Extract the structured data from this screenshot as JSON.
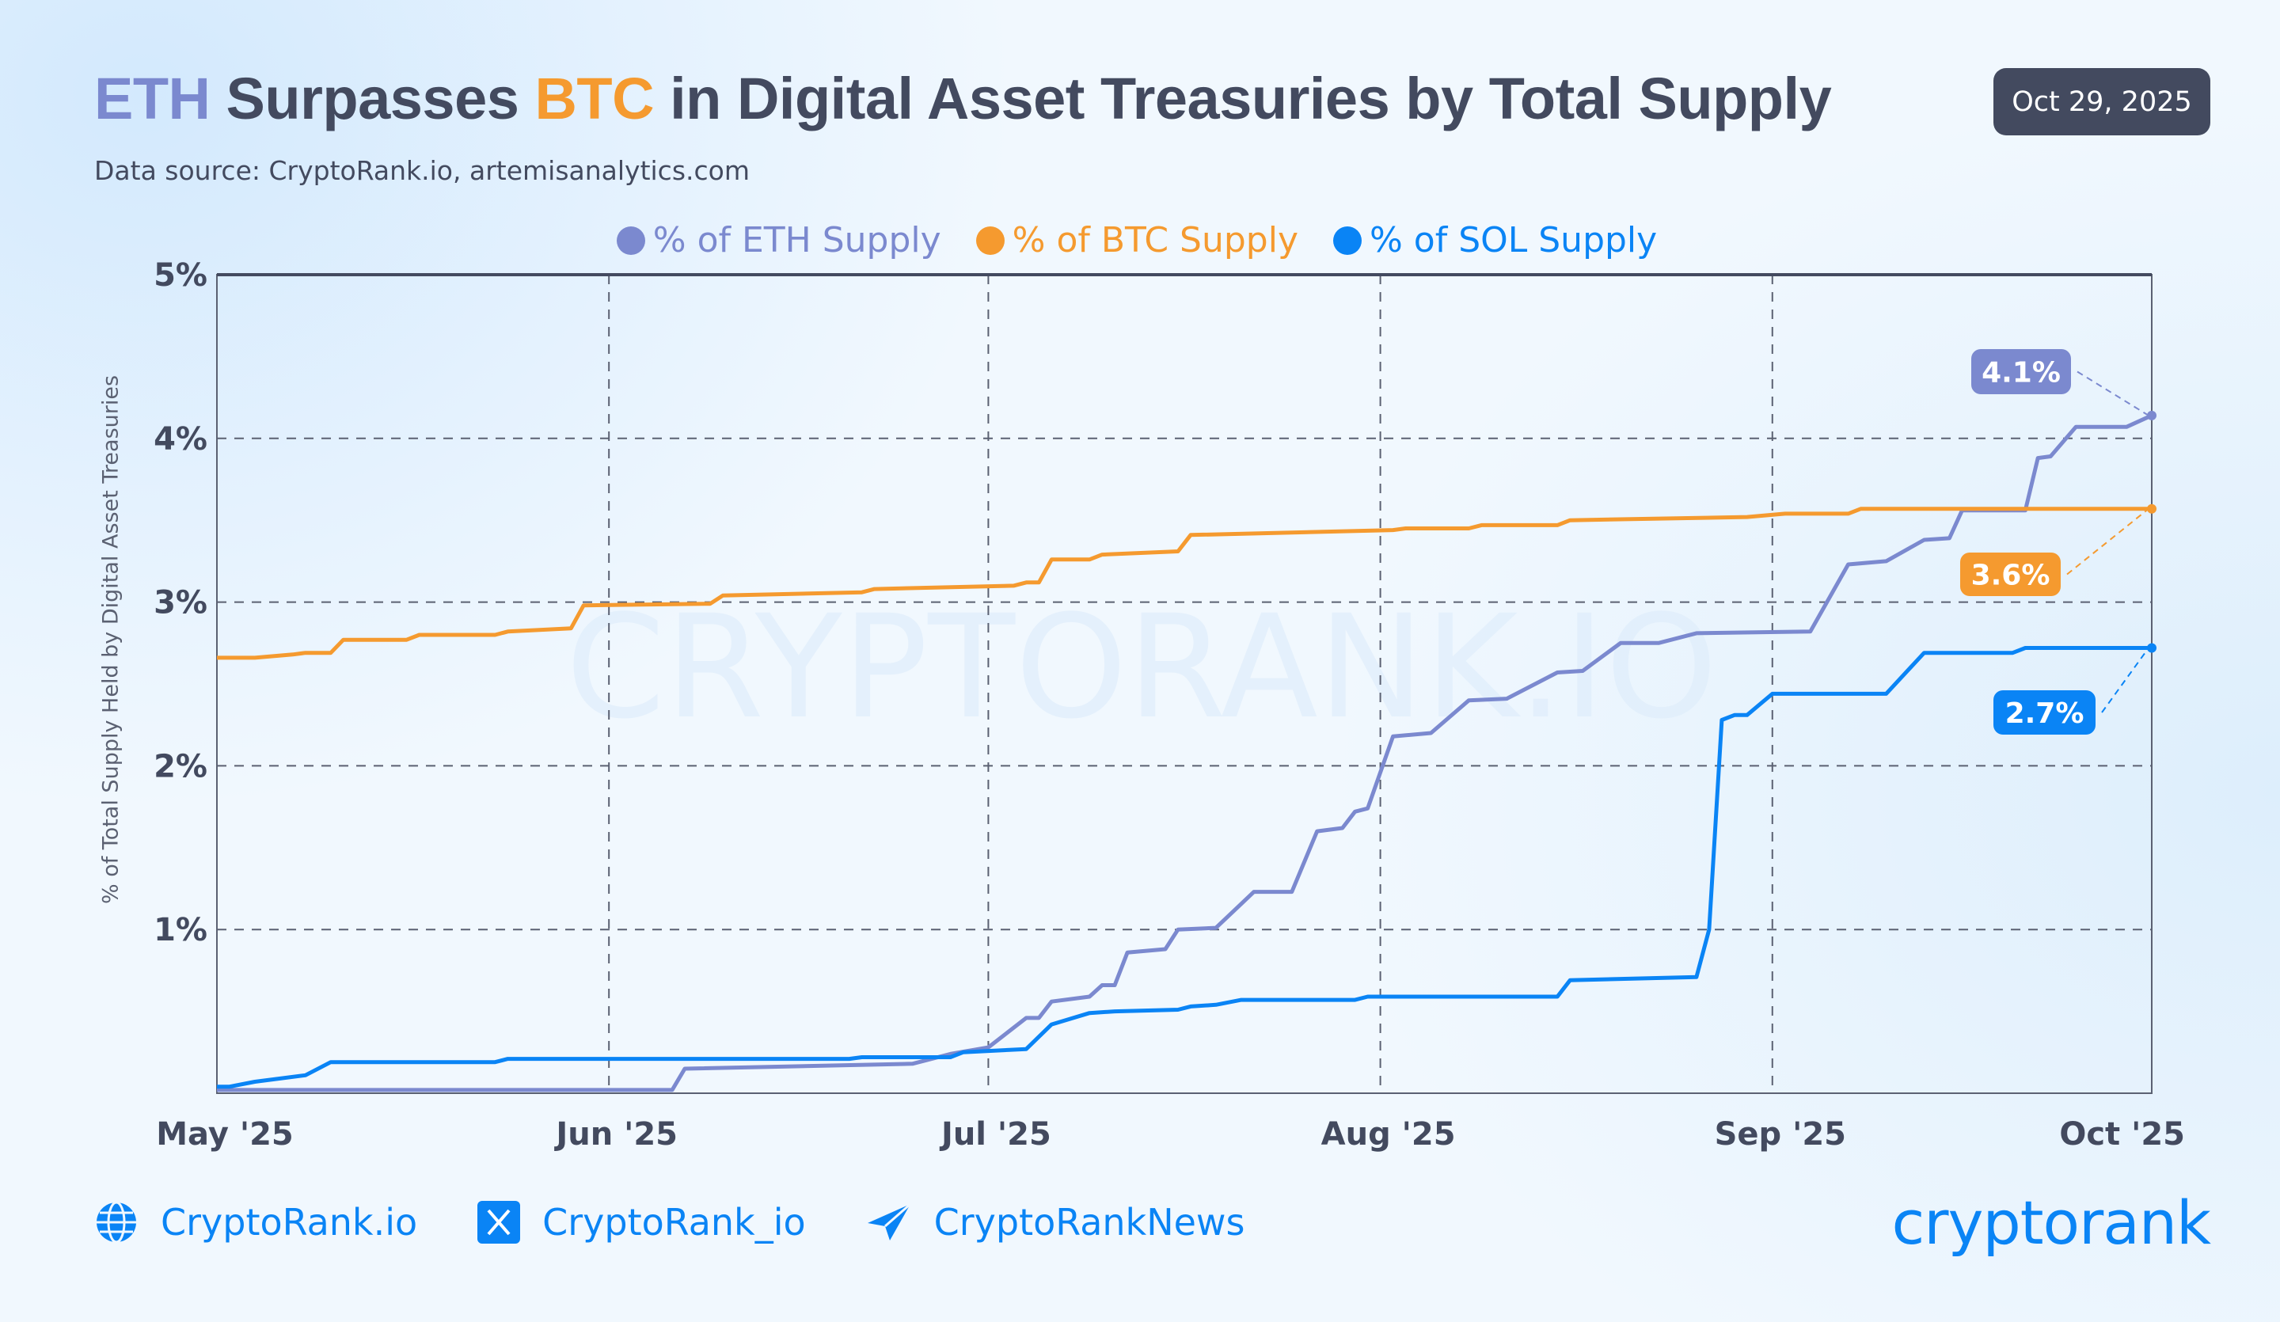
{
  "header": {
    "title_parts": [
      {
        "text": "ETH",
        "color": "#7b89cf"
      },
      {
        "text": " Surpasses ",
        "color": "#434a5f"
      },
      {
        "text": "BTC",
        "color": "#f59a2f"
      },
      {
        "text": " in Digital Asset Treasuries by Total Supply",
        "color": "#434a5f"
      }
    ],
    "subtitle": "Data source: CryptoRank.io, artemisanalytics.com",
    "date_badge": "Oct 29, 2025"
  },
  "watermark": "CRYPTORANK.IO",
  "footer": {
    "website": {
      "icon": "globe-icon",
      "label": "CryptoRank.io"
    },
    "x": {
      "icon": "x-logo-icon",
      "label": "CryptoRank_io"
    },
    "telegram": {
      "icon": "telegram-icon",
      "label": "CryptoRankNews"
    },
    "logo": "cryptorank"
  },
  "chart_data": {
    "type": "line",
    "title": "ETH Surpasses BTC in Digital Asset Treasuries by Total Supply",
    "xlabel": "",
    "ylabel": "% of Total Supply Held by Digital Asset Treasuries",
    "xlim": [
      "2025-05-01",
      "2025-10-01"
    ],
    "ylim": [
      0,
      5
    ],
    "x_ticks": [
      {
        "date": "2025-05-01",
        "label": "May '25"
      },
      {
        "date": "2025-06-01",
        "label": "Jun '25"
      },
      {
        "date": "2025-07-01",
        "label": "Jul '25"
      },
      {
        "date": "2025-08-01",
        "label": "Aug '25"
      },
      {
        "date": "2025-09-01",
        "label": "Sep '25"
      },
      {
        "date": "2025-10-01",
        "label": "Oct '25"
      }
    ],
    "y_ticks": [
      {
        "value": 1,
        "label": "1%"
      },
      {
        "value": 2,
        "label": "2%"
      },
      {
        "value": 3,
        "label": "3%"
      },
      {
        "value": 4,
        "label": "4%"
      },
      {
        "value": 5,
        "label": "5%"
      }
    ],
    "grid": true,
    "legend_position": "top-center",
    "series": [
      {
        "name": "% of ETH Supply",
        "color": "#7b89cf",
        "end_label": "4.1%",
        "points": [
          [
            "2025-05-01",
            0.02
          ],
          [
            "2025-06-06",
            0.02
          ],
          [
            "2025-06-07",
            0.15
          ],
          [
            "2025-06-25",
            0.18
          ],
          [
            "2025-06-28",
            0.24
          ],
          [
            "2025-07-01",
            0.28
          ],
          [
            "2025-07-04",
            0.46
          ],
          [
            "2025-07-05",
            0.46
          ],
          [
            "2025-07-06",
            0.56
          ],
          [
            "2025-07-09",
            0.59
          ],
          [
            "2025-07-10",
            0.66
          ],
          [
            "2025-07-11",
            0.66
          ],
          [
            "2025-07-12",
            0.86
          ],
          [
            "2025-07-15",
            0.88
          ],
          [
            "2025-07-16",
            1.0
          ],
          [
            "2025-07-19",
            1.01
          ],
          [
            "2025-07-22",
            1.23
          ],
          [
            "2025-07-25",
            1.23
          ],
          [
            "2025-07-27",
            1.6
          ],
          [
            "2025-07-29",
            1.62
          ],
          [
            "2025-07-30",
            1.72
          ],
          [
            "2025-07-31",
            1.74
          ],
          [
            "2025-08-02",
            2.18
          ],
          [
            "2025-08-05",
            2.2
          ],
          [
            "2025-08-08",
            2.4
          ],
          [
            "2025-08-11",
            2.41
          ],
          [
            "2025-08-15",
            2.57
          ],
          [
            "2025-08-17",
            2.58
          ],
          [
            "2025-08-20",
            2.75
          ],
          [
            "2025-08-23",
            2.75
          ],
          [
            "2025-08-26",
            2.81
          ],
          [
            "2025-09-04",
            2.82
          ],
          [
            "2025-09-07",
            3.23
          ],
          [
            "2025-09-10",
            3.25
          ],
          [
            "2025-09-13",
            3.38
          ],
          [
            "2025-09-15",
            3.39
          ],
          [
            "2025-09-16",
            3.56
          ],
          [
            "2025-09-21",
            3.56
          ],
          [
            "2025-09-22",
            3.88
          ],
          [
            "2025-09-23",
            3.89
          ],
          [
            "2025-09-25",
            4.07
          ],
          [
            "2025-09-29",
            4.07
          ],
          [
            "2025-10-01",
            4.14
          ]
        ]
      },
      {
        "name": "% of BTC Supply",
        "color": "#f59a2f",
        "end_label": "3.6%",
        "points": [
          [
            "2025-05-01",
            2.66
          ],
          [
            "2025-05-04",
            2.66
          ],
          [
            "2025-05-07",
            2.68
          ],
          [
            "2025-05-08",
            2.69
          ],
          [
            "2025-05-10",
            2.69
          ],
          [
            "2025-05-11",
            2.77
          ],
          [
            "2025-05-16",
            2.77
          ],
          [
            "2025-05-17",
            2.8
          ],
          [
            "2025-05-23",
            2.8
          ],
          [
            "2025-05-24",
            2.82
          ],
          [
            "2025-05-29",
            2.84
          ],
          [
            "2025-05-30",
            2.98
          ],
          [
            "2025-06-09",
            2.99
          ],
          [
            "2025-06-10",
            3.04
          ],
          [
            "2025-06-21",
            3.06
          ],
          [
            "2025-06-22",
            3.08
          ],
          [
            "2025-07-03",
            3.1
          ],
          [
            "2025-07-04",
            3.12
          ],
          [
            "2025-07-05",
            3.12
          ],
          [
            "2025-07-06",
            3.26
          ],
          [
            "2025-07-09",
            3.26
          ],
          [
            "2025-07-10",
            3.29
          ],
          [
            "2025-07-16",
            3.31
          ],
          [
            "2025-07-17",
            3.41
          ],
          [
            "2025-08-02",
            3.44
          ],
          [
            "2025-08-03",
            3.45
          ],
          [
            "2025-08-08",
            3.45
          ],
          [
            "2025-08-09",
            3.47
          ],
          [
            "2025-08-15",
            3.47
          ],
          [
            "2025-08-16",
            3.5
          ],
          [
            "2025-08-30",
            3.52
          ],
          [
            "2025-09-02",
            3.54
          ],
          [
            "2025-09-07",
            3.54
          ],
          [
            "2025-09-08",
            3.57
          ],
          [
            "2025-10-01",
            3.57
          ]
        ]
      },
      {
        "name": "% of SOL Supply",
        "color": "#0a84f5",
        "end_label": "2.7%",
        "points": [
          [
            "2025-05-01",
            0.04
          ],
          [
            "2025-05-02",
            0.04
          ],
          [
            "2025-05-04",
            0.07
          ],
          [
            "2025-05-08",
            0.11
          ],
          [
            "2025-05-10",
            0.19
          ],
          [
            "2025-05-23",
            0.19
          ],
          [
            "2025-05-24",
            0.21
          ],
          [
            "2025-06-20",
            0.21
          ],
          [
            "2025-06-21",
            0.22
          ],
          [
            "2025-06-28",
            0.22
          ],
          [
            "2025-06-29",
            0.25
          ],
          [
            "2025-07-04",
            0.27
          ],
          [
            "2025-07-06",
            0.42
          ],
          [
            "2025-07-09",
            0.49
          ],
          [
            "2025-07-11",
            0.5
          ],
          [
            "2025-07-16",
            0.51
          ],
          [
            "2025-07-17",
            0.53
          ],
          [
            "2025-07-19",
            0.54
          ],
          [
            "2025-07-21",
            0.57
          ],
          [
            "2025-07-30",
            0.57
          ],
          [
            "2025-07-31",
            0.59
          ],
          [
            "2025-08-15",
            0.59
          ],
          [
            "2025-08-16",
            0.69
          ],
          [
            "2025-08-26",
            0.71
          ],
          [
            "2025-08-27",
            1.0
          ],
          [
            "2025-08-28",
            2.28
          ],
          [
            "2025-08-29",
            2.31
          ],
          [
            "2025-08-30",
            2.31
          ],
          [
            "2025-09-01",
            2.44
          ],
          [
            "2025-09-10",
            2.44
          ],
          [
            "2025-09-13",
            2.69
          ],
          [
            "2025-09-20",
            2.69
          ],
          [
            "2025-09-21",
            2.72
          ],
          [
            "2025-10-01",
            2.72
          ]
        ]
      }
    ]
  }
}
